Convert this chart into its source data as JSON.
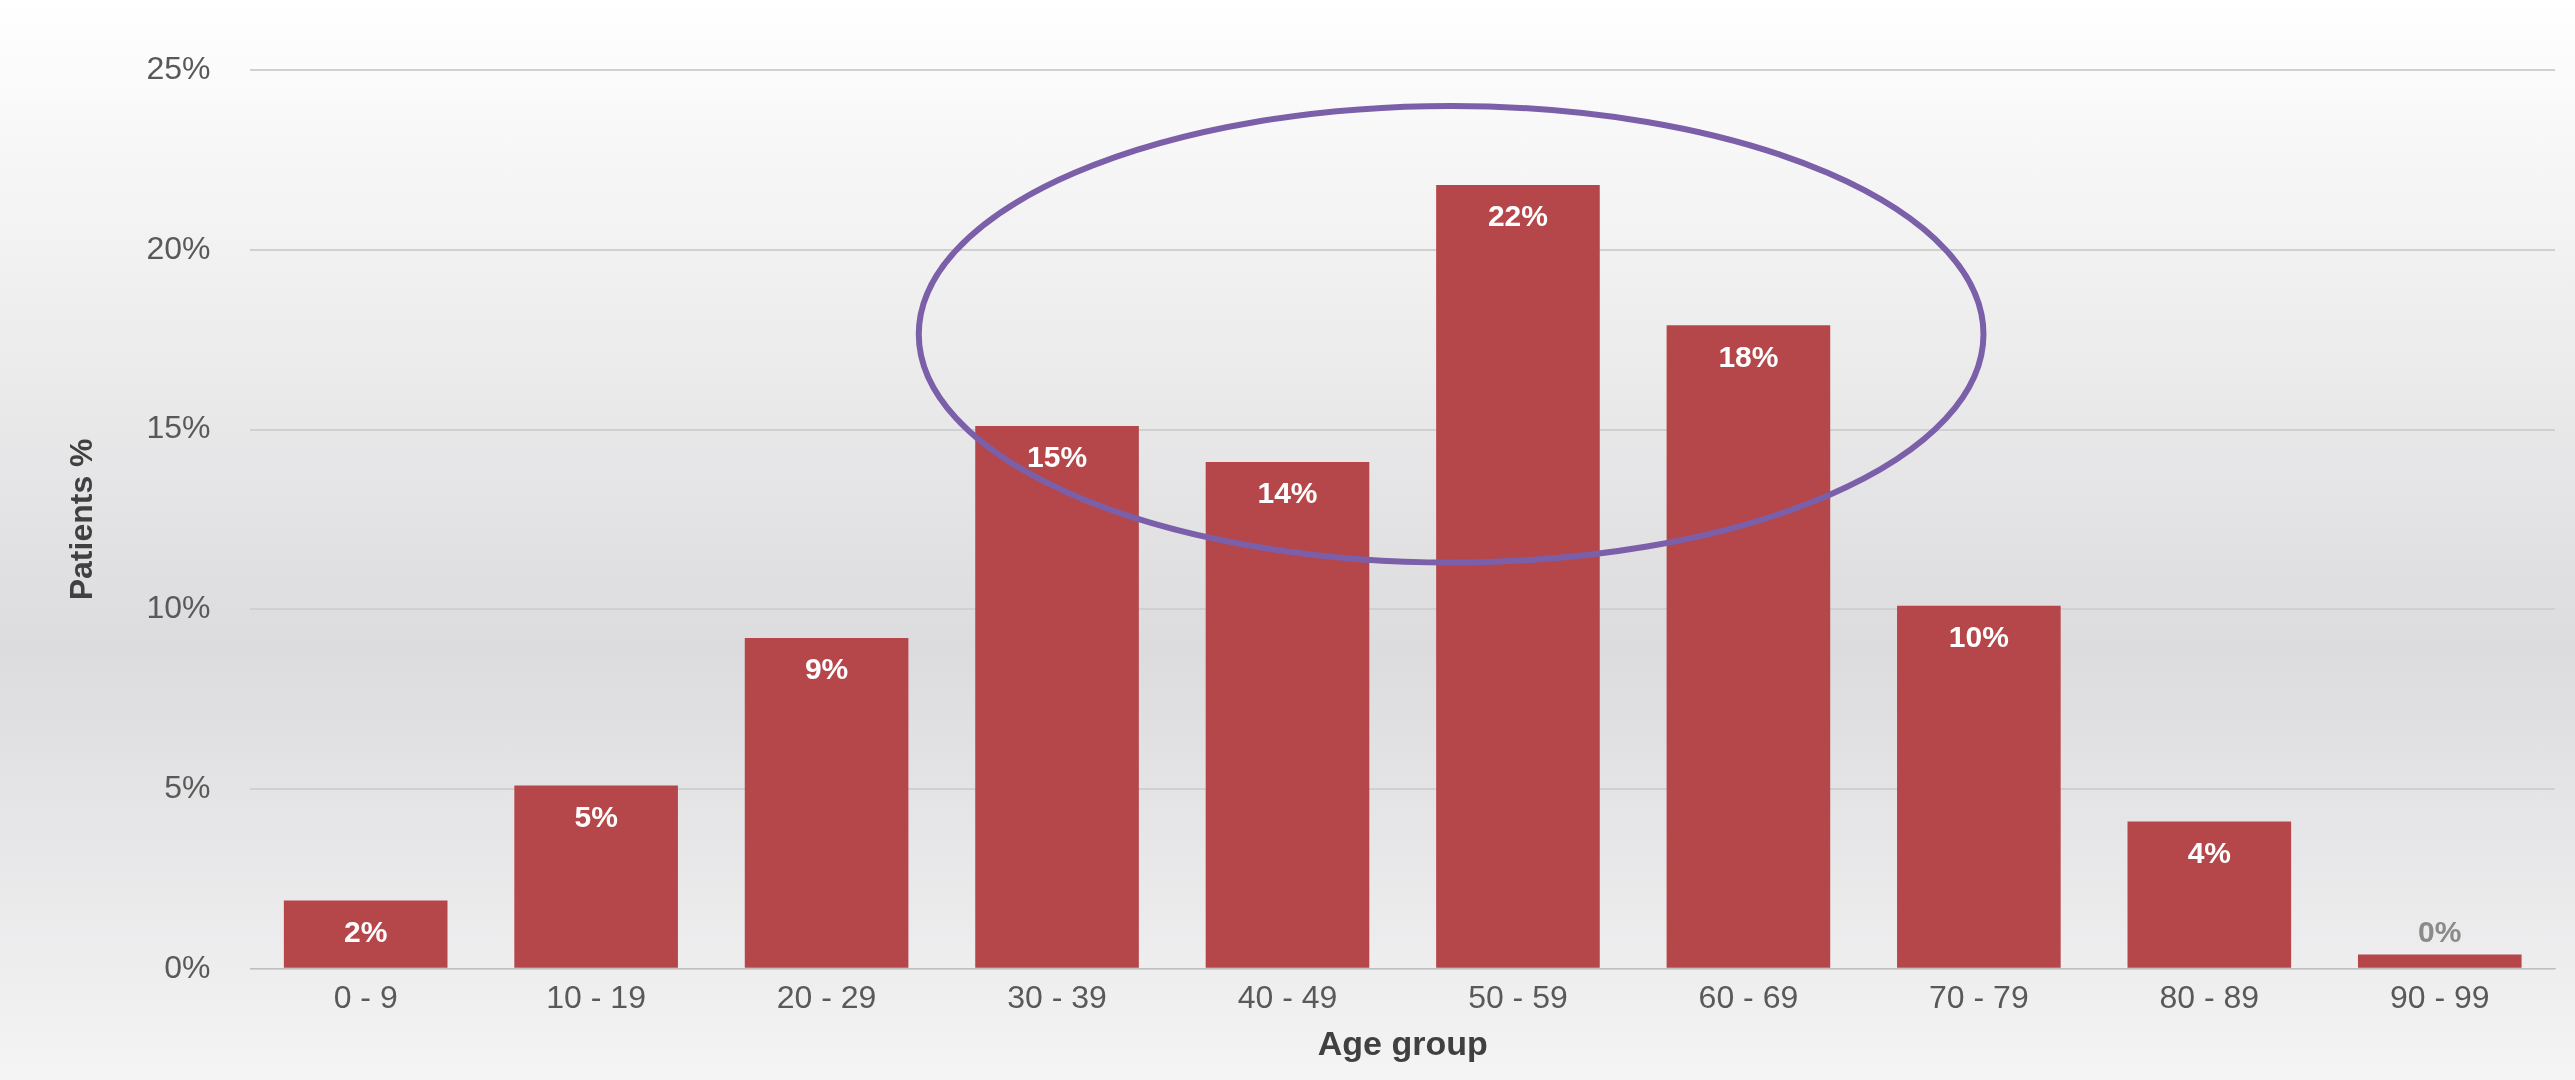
{
  "chart_data": {
    "type": "bar",
    "xlabel": "Age group",
    "ylabel": "Patients %",
    "categories": [
      "0 - 9",
      "10 - 19",
      "20 - 29",
      "30 - 39",
      "40 - 49",
      "50 - 59",
      "60 - 69",
      "70 - 79",
      "80 - 89",
      "90 - 99"
    ],
    "values": [
      1.9,
      5.1,
      9.2,
      15.1,
      14.1,
      21.8,
      17.9,
      10.1,
      4.1,
      0.4
    ],
    "value_labels": [
      "2%",
      "5%",
      "9%",
      "15%",
      "14%",
      "22%",
      "18%",
      "10%",
      "4%",
      "0%"
    ],
    "color": "#b5474a",
    "ylim": [
      0,
      25
    ],
    "yticks": [
      {
        "value": 0,
        "label": "0%"
      },
      {
        "value": 5,
        "label": "5%"
      },
      {
        "value": 10,
        "label": "10%"
      },
      {
        "value": 15,
        "label": "15%"
      },
      {
        "value": 20,
        "label": "20%"
      },
      {
        "value": 25,
        "label": "25%"
      }
    ],
    "grid": "y"
  }
}
